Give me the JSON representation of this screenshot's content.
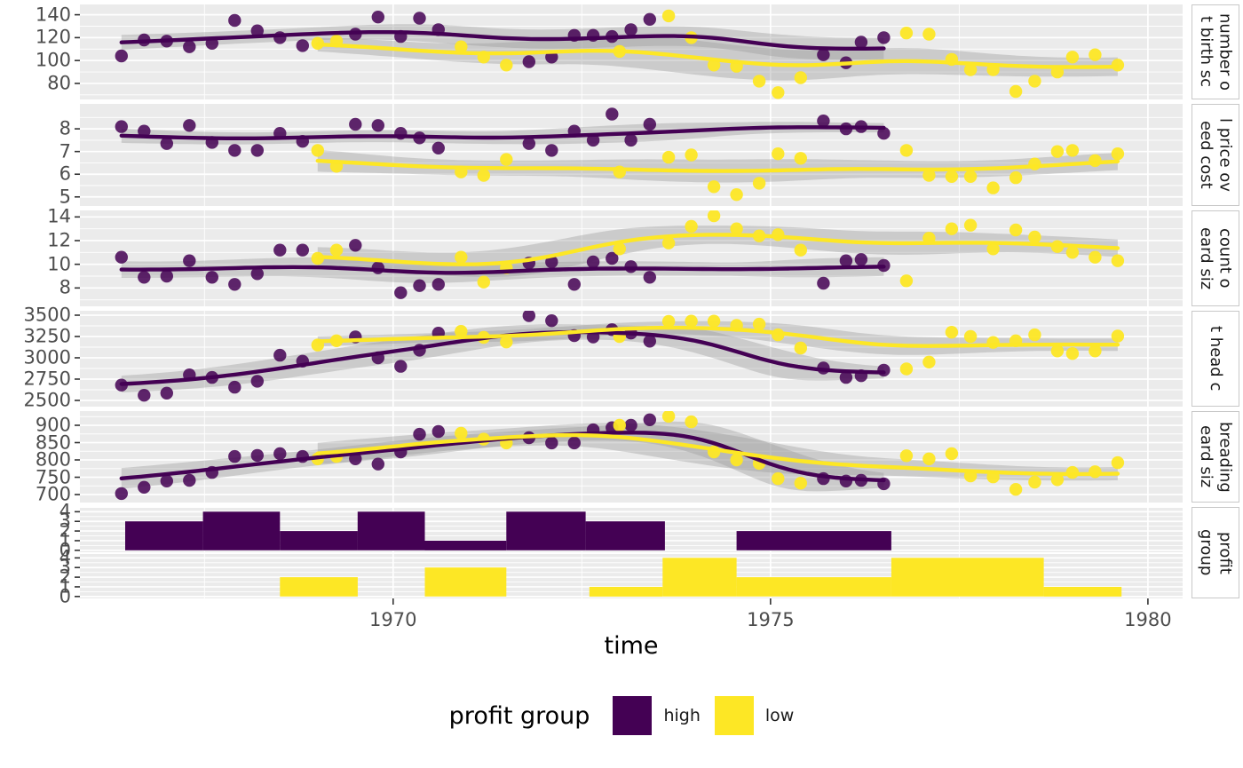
{
  "figure": {
    "xlabel": "time",
    "x_ticks": [
      1970,
      1975,
      1980
    ],
    "x_minor": [
      1967.5,
      1972.5,
      1977.5
    ],
    "xlim": [
      1965.85,
      1980.46
    ],
    "colors": {
      "high": "#440154",
      "low": "#FDE725",
      "panel_bg": "#EBEBEB",
      "grid": "#FFFFFF",
      "ribbon": "#999999",
      "tick_text": "#4D4D4D",
      "tick_mark": "#333333",
      "strip_border": "#C8C8C8"
    },
    "legend": {
      "title": "profit group",
      "entries": [
        {
          "label": "high",
          "color_key": "high"
        },
        {
          "label": "low",
          "color_key": "low"
        }
      ]
    }
  },
  "chart_data": [
    {
      "type": "scatter_smooth",
      "strip_lines": [
        "number o",
        "t birth sc"
      ],
      "ylim": [
        66,
        149
      ],
      "yticks": [
        80,
        100,
        120,
        140
      ],
      "series": [
        {
          "name": "high",
          "x": [
            1966.4,
            1966.7,
            1967.0,
            1967.3,
            1967.6,
            1967.9,
            1968.2,
            1968.5,
            1968.8,
            1969.5,
            1969.8,
            1970.1,
            1970.35,
            1970.6,
            1971.8,
            1972.1,
            1972.4,
            1972.65,
            1972.9,
            1973.15,
            1973.4,
            1975.7,
            1976.0,
            1976.2,
            1976.5
          ],
          "y": [
            104,
            118,
            117,
            112,
            115,
            135,
            126,
            120,
            113,
            123,
            138,
            121,
            137,
            127,
            99,
            103,
            122,
            122,
            121,
            127,
            136,
            105,
            98,
            116,
            120
          ]
        },
        {
          "name": "low",
          "x": [
            1969.0,
            1969.25,
            1970.9,
            1971.2,
            1971.5,
            1973.0,
            1973.65,
            1973.95,
            1974.25,
            1974.55,
            1974.85,
            1975.1,
            1975.4,
            1976.8,
            1977.1,
            1977.4,
            1977.65,
            1977.95,
            1978.25,
            1978.5,
            1978.8,
            1979.0,
            1979.3,
            1979.6
          ],
          "y": [
            115,
            117,
            112,
            103,
            96,
            108,
            139,
            120,
            96,
            95,
            82,
            72,
            85,
            124,
            123,
            101,
            92,
            92,
            73,
            82,
            90,
            103,
            105,
            96
          ]
        }
      ]
    },
    {
      "type": "scatter_smooth",
      "strip_lines": [
        "l price ov",
        "eed cost"
      ],
      "ylim": [
        4.6,
        9.1
      ],
      "yticks": [
        5,
        6,
        7,
        8
      ],
      "series": [
        {
          "name": "high",
          "x": [
            1966.4,
            1966.7,
            1967.0,
            1967.3,
            1967.6,
            1967.9,
            1968.2,
            1968.5,
            1968.8,
            1969.5,
            1969.8,
            1970.1,
            1970.35,
            1970.6,
            1971.8,
            1972.1,
            1972.4,
            1972.65,
            1972.9,
            1973.15,
            1973.4,
            1975.7,
            1976.0,
            1976.2,
            1976.5
          ],
          "y": [
            8.1,
            7.9,
            7.35,
            8.15,
            7.4,
            7.05,
            7.05,
            7.8,
            7.45,
            8.2,
            8.15,
            7.8,
            7.6,
            7.15,
            7.35,
            7.05,
            7.9,
            7.5,
            8.65,
            7.5,
            8.2,
            8.35,
            8.0,
            8.1,
            7.8
          ]
        },
        {
          "name": "low",
          "x": [
            1969.0,
            1969.25,
            1970.9,
            1971.2,
            1971.5,
            1973.0,
            1973.65,
            1973.95,
            1974.25,
            1974.55,
            1974.85,
            1975.1,
            1975.4,
            1976.8,
            1977.1,
            1977.4,
            1977.65,
            1977.95,
            1978.25,
            1978.5,
            1978.8,
            1979.0,
            1979.3,
            1979.6
          ],
          "y": [
            7.05,
            6.35,
            6.1,
            5.95,
            6.65,
            6.1,
            6.75,
            6.85,
            5.45,
            5.1,
            5.6,
            6.9,
            6.7,
            7.05,
            5.95,
            5.9,
            5.9,
            5.4,
            5.85,
            6.45,
            7.0,
            7.05,
            6.6,
            6.9
          ]
        }
      ]
    },
    {
      "type": "scatter_smooth",
      "strip_lines": [
        "count o",
        "eard siz"
      ],
      "ylim": [
        6.45,
        14.55
      ],
      "yticks": [
        8,
        10,
        12,
        14
      ],
      "series": [
        {
          "name": "high",
          "x": [
            1966.4,
            1966.7,
            1967.0,
            1967.3,
            1967.6,
            1967.9,
            1968.2,
            1968.5,
            1968.8,
            1969.5,
            1969.8,
            1970.1,
            1970.35,
            1970.6,
            1971.8,
            1972.1,
            1972.4,
            1972.65,
            1972.9,
            1973.15,
            1973.4,
            1975.7,
            1976.0,
            1976.2,
            1976.5
          ],
          "y": [
            10.6,
            8.9,
            9.0,
            10.3,
            8.9,
            8.3,
            9.2,
            11.2,
            11.2,
            11.6,
            9.7,
            7.6,
            8.2,
            8.3,
            10.1,
            10.2,
            8.3,
            10.2,
            10.5,
            9.8,
            8.9,
            8.4,
            10.3,
            10.4,
            9.9
          ]
        },
        {
          "name": "low",
          "x": [
            1969.0,
            1969.25,
            1970.9,
            1971.2,
            1971.5,
            1973.0,
            1973.65,
            1973.95,
            1974.25,
            1974.55,
            1974.85,
            1975.1,
            1975.4,
            1976.8,
            1977.1,
            1977.4,
            1977.65,
            1977.95,
            1978.25,
            1978.5,
            1978.8,
            1979.0,
            1979.3,
            1979.6
          ],
          "y": [
            10.5,
            11.2,
            10.6,
            8.5,
            9.7,
            11.3,
            11.8,
            13.2,
            14.1,
            13.0,
            12.4,
            12.5,
            11.2,
            8.6,
            12.2,
            13.0,
            13.3,
            11.3,
            12.9,
            12.3,
            11.5,
            11.0,
            10.6,
            10.3
          ]
        }
      ]
    },
    {
      "type": "scatter_smooth",
      "strip_lines": [
        "t head c"
      ],
      "ylim": [
        2427,
        3552
      ],
      "yticks": [
        2500,
        2750,
        3000,
        3250,
        3500
      ],
      "series": [
        {
          "name": "high",
          "x": [
            1966.4,
            1966.7,
            1967.0,
            1967.3,
            1967.6,
            1967.9,
            1968.2,
            1968.5,
            1968.8,
            1969.5,
            1969.8,
            1970.1,
            1970.35,
            1970.6,
            1971.8,
            1972.1,
            1972.4,
            1972.65,
            1972.9,
            1973.15,
            1973.4,
            1975.7,
            1976.0,
            1976.2,
            1976.5
          ],
          "y": [
            2680,
            2560,
            2585,
            2800,
            2770,
            2655,
            2725,
            3030,
            2960,
            3245,
            3000,
            2900,
            3090,
            3290,
            3495,
            3435,
            3260,
            3245,
            3330,
            3290,
            3195,
            2880,
            2770,
            2790,
            2855
          ]
        },
        {
          "name": "low",
          "x": [
            1969.0,
            1969.25,
            1970.9,
            1971.2,
            1971.5,
            1973.0,
            1973.65,
            1973.95,
            1974.25,
            1974.55,
            1974.85,
            1975.1,
            1975.4,
            1976.8,
            1977.1,
            1977.4,
            1977.65,
            1977.95,
            1978.25,
            1978.5,
            1978.8,
            1979.0,
            1979.3,
            1979.6
          ],
          "y": [
            3150,
            3200,
            3310,
            3240,
            3185,
            3250,
            3427,
            3430,
            3430,
            3380,
            3395,
            3270,
            3115,
            2870,
            2950,
            3300,
            3250,
            3180,
            3200,
            3270,
            3080,
            3050,
            3080,
            3255
          ]
        }
      ]
    },
    {
      "type": "scatter_smooth",
      "strip_lines": [
        "breading",
        "eard siz"
      ],
      "ylim": [
        677,
        941
      ],
      "yticks": [
        700,
        750,
        800,
        850,
        900
      ],
      "series": [
        {
          "name": "high",
          "x": [
            1966.4,
            1966.7,
            1967.0,
            1967.3,
            1967.6,
            1967.9,
            1968.2,
            1968.5,
            1968.8,
            1969.5,
            1969.8,
            1970.1,
            1970.35,
            1970.6,
            1971.8,
            1972.1,
            1972.4,
            1972.65,
            1972.9,
            1973.15,
            1973.4,
            1975.7,
            1976.0,
            1976.2,
            1976.5
          ],
          "y": [
            703,
            721,
            739,
            741,
            764,
            810,
            813,
            818,
            810,
            803,
            788,
            823,
            874,
            882,
            864,
            849,
            849,
            887,
            893,
            900,
            916,
            746,
            739,
            741,
            731
          ]
        },
        {
          "name": "low",
          "x": [
            1969.0,
            1969.25,
            1970.9,
            1971.2,
            1971.5,
            1973.0,
            1973.65,
            1973.95,
            1974.25,
            1974.55,
            1974.85,
            1975.1,
            1975.4,
            1976.8,
            1977.1,
            1977.4,
            1977.65,
            1977.95,
            1978.25,
            1978.5,
            1978.8,
            1979.0,
            1979.3,
            1979.6
          ],
          "y": [
            803,
            810,
            877,
            860,
            849,
            900,
            926,
            910,
            823,
            800,
            790,
            746,
            733,
            812,
            803,
            818,
            754,
            751,
            715,
            736,
            743,
            764,
            766,
            792
          ]
        }
      ]
    },
    {
      "type": "histogram",
      "strip_lines": [
        "profit",
        "group"
      ],
      "ylim": [
        -0.2,
        4.4
      ],
      "yticks": [
        0,
        1,
        2,
        3,
        4
      ],
      "rows": [
        {
          "name": "high",
          "bins": [
            [
              1966.45,
              1967.48,
              3
            ],
            [
              1967.48,
              1968.5,
              4
            ],
            [
              1968.5,
              1969.53,
              2
            ],
            [
              1969.53,
              1970.42,
              4
            ],
            [
              1970.42,
              1971.5,
              1
            ],
            [
              1971.5,
              1972.55,
              4
            ],
            [
              1972.55,
              1973.6,
              3
            ],
            [
              1974.55,
              1976.6,
              2
            ]
          ]
        },
        {
          "name": "low",
          "bins": [
            [
              1968.5,
              1969.53,
              2
            ],
            [
              1970.42,
              1971.5,
              3
            ],
            [
              1972.6,
              1973.57,
              1
            ],
            [
              1973.57,
              1974.55,
              4
            ],
            [
              1974.55,
              1976.6,
              2
            ],
            [
              1976.6,
              1978.62,
              4
            ],
            [
              1978.62,
              1979.65,
              1
            ]
          ]
        }
      ]
    }
  ]
}
